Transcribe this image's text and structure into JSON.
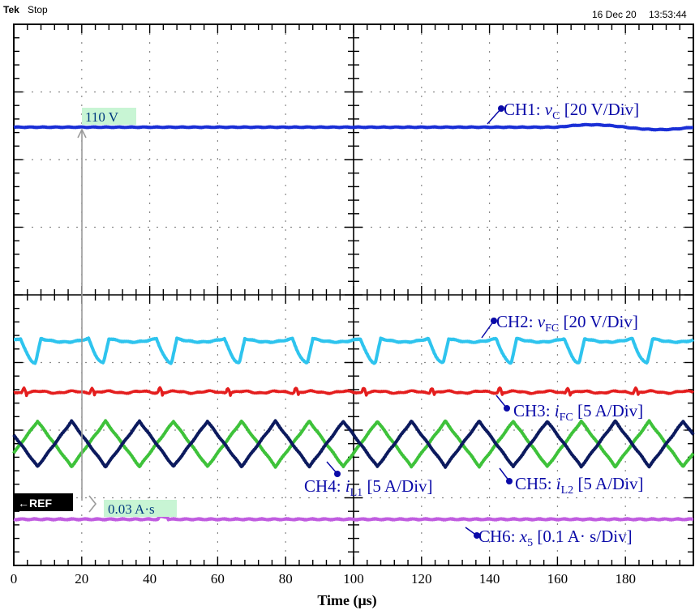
{
  "header": {
    "brand": "Tek",
    "state": "Stop",
    "date": "16 Dec 20",
    "time": "13:53:44"
  },
  "ref_marker": "←REF",
  "cursor_readouts": [
    {
      "label": "110 V"
    },
    {
      "label": "0.03 A·s"
    }
  ],
  "colors": {
    "ch1": "#1a2fd6",
    "ch2": "#2ec4ee",
    "ch3": "#e41e1e",
    "ch4": "#0c1a5e",
    "ch5": "#3ec23a",
    "ch6": "#c05ce0",
    "annotation": "#0a0aa8",
    "cursor_bg": "#c8f5d4"
  },
  "chart_data": {
    "type": "line",
    "xlabel": "Time (μs)",
    "xlim": [
      0,
      200
    ],
    "xticks": [
      0,
      20,
      40,
      60,
      80,
      100,
      120,
      140,
      160,
      180
    ],
    "divisions": {
      "horizontal": 10,
      "vertical": 8
    },
    "grid": true,
    "series": [
      {
        "name": "CH1",
        "symbol": "v",
        "sub": "C",
        "scale": "[20 V/Div]",
        "level_V": 110
      },
      {
        "name": "CH2",
        "symbol": "v",
        "sub": "FC",
        "scale": "[20 V/Div]",
        "period_us": 20
      },
      {
        "name": "CH3",
        "symbol": "i",
        "sub": "FC",
        "scale": "[5 A/Div]",
        "period_us": 20
      },
      {
        "name": "CH4",
        "symbol": "i",
        "sub": "L1",
        "scale": "[5 A/Div]",
        "period_us": 20
      },
      {
        "name": "CH5",
        "symbol": "i",
        "sub": "L2",
        "scale": "[5 A/Div]",
        "period_us": 20
      },
      {
        "name": "CH6",
        "symbol": "x",
        "sub": "5",
        "scale": "[0.1 A· s/Div]",
        "level_As": 0.03
      }
    ]
  }
}
